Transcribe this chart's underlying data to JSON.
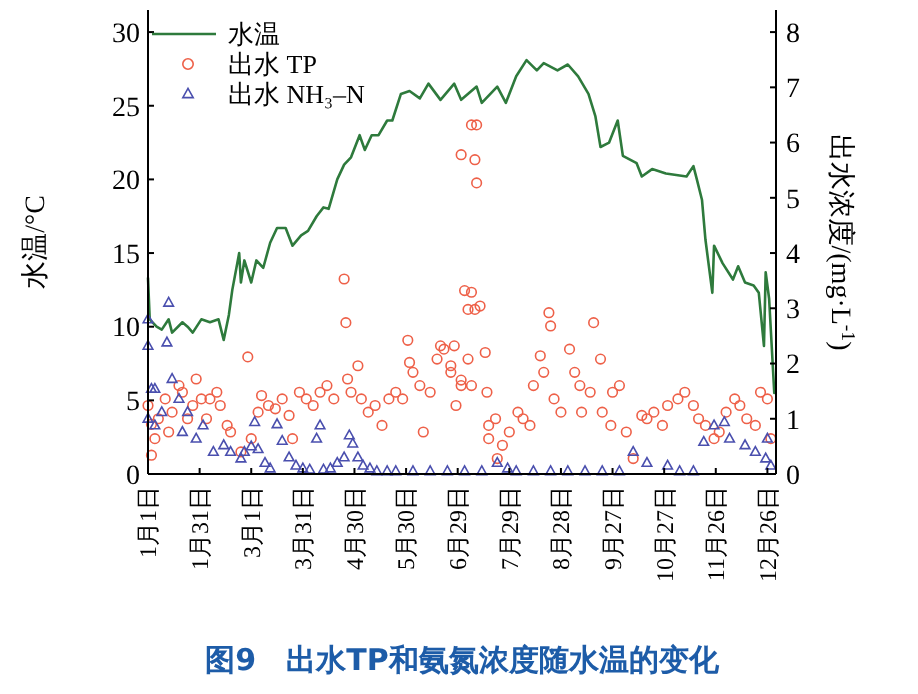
{
  "chart_data": {
    "type": "line",
    "title": "图9　出水TP和氨氮浓度随水温的变化",
    "ylabel": "水温/°C",
    "y2label": "出水浓度/(mg·L$^{-1}$)",
    "xlim": [
      "--01-01",
      "--12-31"
    ],
    "xticks": [
      {
        "value": "--01-01",
        "label": "1月1日"
      },
      {
        "value": "--01-31",
        "label": "1月31日"
      },
      {
        "value": "--03-01",
        "label": "3月1日"
      },
      {
        "value": "--03-31",
        "label": "3月31日"
      },
      {
        "value": "--04-30",
        "label": "4月30日"
      },
      {
        "value": "--05-30",
        "label": "5月30日"
      },
      {
        "value": "--06-29",
        "label": "6月29日"
      },
      {
        "value": "--07-29",
        "label": "7月29日"
      },
      {
        "value": "--08-28",
        "label": "8月28日"
      },
      {
        "value": "--09-27",
        "label": "9月27日"
      },
      {
        "value": "--10-27",
        "label": "10月27日"
      },
      {
        "value": "--11-26",
        "label": "11月26日"
      },
      {
        "value": "--12-26",
        "label": "12月26日"
      }
    ],
    "ylim": [
      0,
      31.5
    ],
    "yticks": [
      0,
      5,
      10,
      15,
      20,
      25,
      30
    ],
    "y2lim": [
      0,
      8.4
    ],
    "y2ticks": [
      0,
      1,
      2,
      3,
      4,
      5,
      6,
      7,
      8
    ],
    "grid": false,
    "legend": "top left",
    "series": [
      {
        "name": "水温",
        "color": "#2e7a3c",
        "line_style": "solid",
        "x": [
          "--01-01",
          "--01-02",
          "--01-06",
          "--01-09",
          "--01-13",
          "--01-15",
          "--01-21",
          "--01-24",
          "--01-27",
          "--02-01",
          "--02-06",
          "--02-11",
          "--02-14",
          "--02-17",
          "--02-19",
          "--02-23",
          "--02-24",
          "--02-26",
          "--03-01",
          "--03-04",
          "--03-08",
          "--03-12",
          "--03-16",
          "--03-21",
          "--03-25",
          "--03-30",
          "--04-03",
          "--04-08",
          "--04-12",
          "--04-15",
          "--04-20",
          "--04-24",
          "--04-28",
          "--05-03",
          "--05-06",
          "--05-10",
          "--05-14",
          "--05-19",
          "--05-22",
          "--05-27",
          "--06-01",
          "--06-07",
          "--06-12",
          "--06-19",
          "--06-27",
          "--07-01",
          "--07-10",
          "--07-13",
          "--07-22",
          "--07-27",
          "--08-02",
          "--08-08",
          "--08-14",
          "--08-18",
          "--08-26",
          "--09-01",
          "--09-07",
          "--09-13",
          "--09-17",
          "--09-20",
          "--09-25",
          "--09-30",
          "--10-03",
          "--10-11",
          "--10-14",
          "--10-20",
          "--10-28",
          "--11-09",
          "--11-13",
          "--11-15",
          "--11-18",
          "--11-20",
          "--11-24",
          "--11-25",
          "--11-30",
          "--12-06",
          "--12-09",
          "--12-13",
          "--12-18",
          "--12-21",
          "--12-24",
          "--12-25",
          "--12-27",
          "--12-30"
        ],
        "values": [
          13.3,
          10.5,
          10,
          9.8,
          10.5,
          9.6,
          10.3,
          10,
          9.6,
          10.5,
          10.3,
          10.5,
          9.1,
          10.8,
          12.5,
          15,
          13,
          14.5,
          13,
          14.5,
          14,
          15.7,
          16.7,
          16.7,
          15.5,
          16.2,
          16.5,
          17.5,
          18.1,
          18,
          20,
          21,
          21.5,
          23,
          22,
          23,
          23,
          24,
          24,
          25.8,
          26,
          25.5,
          26.5,
          25.4,
          26.5,
          25.4,
          26.3,
          25.2,
          26.3,
          25.2,
          27.0,
          28.1,
          27.4,
          27.9,
          27.4,
          27.8,
          27.0,
          25.8,
          24.3,
          22.2,
          22.5,
          24.0,
          21.6,
          21.1,
          20.2,
          20.7,
          20.4,
          20.2,
          20.9,
          20.0,
          18.6,
          15.9,
          12.3,
          15.5,
          14.3,
          13.2,
          14.1,
          13.0,
          12.8,
          12.3,
          8.7,
          13.7,
          11.9,
          5.5
        ]
      },
      {
        "name": "出水 TP",
        "type": "scatter",
        "axis": "y2",
        "color": "#ee6048",
        "marker": "circle",
        "x": [
          "--01-01",
          "--01-03",
          "--01-03",
          "--01-05",
          "--01-07",
          "--01-11",
          "--01-13",
          "--01-15",
          "--01-19",
          "--01-21",
          "--01-24",
          "--01-27",
          "--01-29",
          "--02-01",
          "--02-04",
          "--02-06",
          "--02-10",
          "--02-12",
          "--02-16",
          "--02-18",
          "--02-24",
          "--02-28",
          "--03-01",
          "--03-05",
          "--03-07",
          "--03-11",
          "--03-15",
          "--03-19",
          "--03-23",
          "--03-25",
          "--03-29",
          "--04-02",
          "--04-06",
          "--04-10",
          "--04-14",
          "--04-18",
          "--04-24",
          "--04-25",
          "--04-26",
          "--04-28",
          "--05-02",
          "--05-04",
          "--05-08",
          "--05-12",
          "--05-16",
          "--05-20",
          "--05-24",
          "--05-28",
          "--05-31",
          "--06-01",
          "--06-03",
          "--06-07",
          "--06-09",
          "--06-13",
          "--06-17",
          "--06-21",
          "--06-25",
          "--06-27",
          "--07-01",
          "--07-03",
          "--07-05",
          "--07-07",
          "--07-01",
          "--07-09",
          "--07-10",
          "--07-07",
          "--07-10",
          "--06-19",
          "--06-25",
          "--06-28",
          "--07-01",
          "--07-05",
          "--07-07",
          "--07-09",
          "--07-12",
          "--07-15",
          "--07-16",
          "--07-17",
          "--07-21",
          "--07-17",
          "--07-22",
          "--07-25",
          "--07-29",
          "--08-03",
          "--08-06",
          "--08-10",
          "--08-12",
          "--08-16",
          "--08-18",
          "--08-21",
          "--08-22",
          "--08-24",
          "--08-28",
          "--09-02",
          "--09-05",
          "--09-08",
          "--09-09",
          "--09-14",
          "--09-16",
          "--09-20",
          "--09-21",
          "--09-26",
          "--09-27",
          "--10-01",
          "--10-05",
          "--10-09",
          "--10-14",
          "--10-17",
          "--10-21",
          "--10-26",
          "--10-29",
          "--11-04",
          "--11-08",
          "--11-13",
          "--11-16",
          "--11-20",
          "--11-25",
          "--11-28",
          "--12-02",
          "--12-07",
          "--12-10",
          "--12-14",
          "--12-19",
          "--12-22",
          "--12-26",
          "--12-28"
        ],
        "values": [
          1.24,
          0.9,
          0.34,
          0.64,
          1.0,
          1.36,
          0.76,
          1.12,
          1.6,
          1.48,
          1.0,
          1.24,
          1.72,
          1.36,
          1.0,
          1.36,
          1.48,
          1.24,
          0.88,
          0.76,
          0.4,
          2.12,
          0.64,
          1.12,
          1.42,
          1.24,
          1.18,
          1.36,
          1.06,
          0.64,
          1.48,
          1.36,
          1.24,
          1.48,
          1.6,
          1.36,
          3.53,
          2.74,
          1.72,
          1.48,
          1.96,
          1.36,
          1.12,
          1.24,
          0.88,
          1.36,
          1.48,
          1.36,
          2.42,
          2.02,
          1.84,
          1.6,
          0.76,
          1.48,
          2.08,
          2.26,
          1.84,
          2.32,
          1.7,
          3.32,
          2.98,
          1.6,
          5.78,
          5.69,
          5.27,
          6.32,
          6.32,
          2.32,
          1.96,
          1.24,
          1.6,
          2.08,
          3.29,
          2.98,
          3.04,
          2.2,
          1.48,
          0.88,
          1.0,
          0.64,
          0.28,
          0.52,
          0.76,
          1.12,
          1.0,
          0.88,
          1.6,
          2.14,
          1.84,
          2.92,
          2.68,
          1.36,
          1.12,
          2.26,
          1.84,
          1.6,
          1.12,
          1.48,
          2.74,
          2.08,
          1.12,
          0.88,
          1.48,
          1.6,
          0.76,
          0.28,
          1.06,
          1.0,
          1.12,
          0.88,
          1.24,
          1.36,
          1.48,
          1.24,
          1.0,
          0.88,
          0.64,
          0.76,
          1.12,
          1.36,
          1.24,
          1.0,
          0.88,
          1.48,
          1.36,
          0.64
        ]
      },
      {
        "name": "出水 NH₃–N",
        "type": "scatter",
        "axis": "y2",
        "color": "#4a4fae",
        "marker": "triangle",
        "x": [
          "--01-01",
          "--01-01",
          "--01-03",
          "--01-05",
          "--01-12",
          "--01-13",
          "--01-01",
          "--01-05",
          "--01-09",
          "--01-15",
          "--01-19",
          "--01-21",
          "--01-24",
          "--01-29",
          "--02-02",
          "--02-08",
          "--02-14",
          "--02-18",
          "--02-24",
          "--02-26",
          "--03-01",
          "--03-03",
          "--03-05",
          "--03-09",
          "--03-12",
          "--03-16",
          "--03-19",
          "--03-23",
          "--03-27",
          "--03-31",
          "--04-04",
          "--04-08",
          "--04-10",
          "--04-12",
          "--04-16",
          "--04-20",
          "--04-24",
          "--04-27",
          "--04-29",
          "--05-02",
          "--05-05",
          "--05-09",
          "--05-13",
          "--05-19",
          "--05-24",
          "--06-03",
          "--06-13",
          "--06-23",
          "--07-03",
          "--07-13",
          "--07-22",
          "--07-28",
          "--08-02",
          "--08-12",
          "--08-22",
          "--09-01",
          "--09-11",
          "--09-21",
          "--10-01",
          "--10-09",
          "--10-17",
          "--10-29",
          "--11-05",
          "--11-13",
          "--11-19",
          "--11-25",
          "--12-01",
          "--12-04",
          "--12-13",
          "--12-19",
          "--12-25",
          "--12-26",
          "--12-28"
        ],
        "values": [
          2.32,
          2.8,
          1.54,
          1.54,
          2.38,
          3.1,
          1.0,
          0.88,
          1.12,
          1.72,
          1.36,
          0.76,
          1.12,
          0.64,
          0.88,
          0.4,
          0.52,
          0.4,
          0.28,
          0.4,
          0.5,
          0.94,
          0.45,
          0.2,
          0.1,
          0.9,
          0.6,
          0.3,
          0.15,
          0.1,
          0.08,
          0.64,
          0.88,
          0.08,
          0.1,
          0.2,
          0.3,
          0.7,
          0.55,
          0.3,
          0.15,
          0.1,
          0.05,
          0.05,
          0.05,
          0.05,
          0.05,
          0.05,
          0.05,
          0.05,
          0.2,
          0.1,
          0.05,
          0.05,
          0.05,
          0.05,
          0.05,
          0.05,
          0.05,
          0.4,
          0.2,
          0.15,
          0.05,
          0.05,
          0.58,
          0.88,
          0.94,
          0.64,
          0.52,
          0.4,
          0.28,
          0.64,
          0.15
        ]
      }
    ]
  }
}
